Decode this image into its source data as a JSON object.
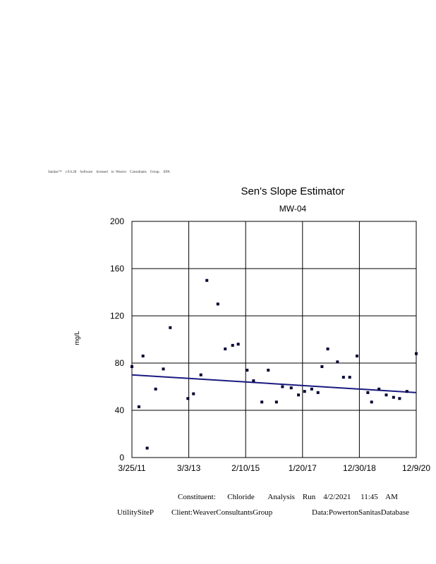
{
  "license_text": "Sanitas™    v.9.6.28    Software    licensed    to  Weaver    Consultants    Group.    EPA",
  "chart_data": {
    "type": "scatter",
    "title": "Sen's Slope Estimator",
    "subtitle": "MW-04",
    "xlabel": "",
    "ylabel": "mg/L",
    "ylim": [
      0,
      200
    ],
    "yticks": [
      0,
      40,
      80,
      120,
      160,
      200
    ],
    "xlim": [
      "2011-03-25",
      "2020-12-09"
    ],
    "xticks": [
      "3/25/11",
      "3/3/13",
      "2/10/15",
      "1/20/17",
      "12/30/18",
      "12/9/20"
    ],
    "grid": true,
    "point_color": "#000033",
    "trend_color": "#1a1a80",
    "trend": {
      "start": [
        "2011-03-25",
        70
      ],
      "end": [
        "2020-12-09",
        55
      ]
    },
    "points": [
      [
        "2011-03-25",
        77
      ],
      [
        "2011-06-20",
        43
      ],
      [
        "2011-08-10",
        86
      ],
      [
        "2011-10-01",
        8
      ],
      [
        "2012-01-15",
        58
      ],
      [
        "2012-04-20",
        75
      ],
      [
        "2012-07-15",
        110
      ],
      [
        "2013-02-20",
        50
      ],
      [
        "2013-05-01",
        54
      ],
      [
        "2013-08-01",
        70
      ],
      [
        "2013-10-15",
        150
      ],
      [
        "2014-03-01",
        130
      ],
      [
        "2014-06-01",
        92
      ],
      [
        "2014-09-01",
        95
      ],
      [
        "2014-11-10",
        96
      ],
      [
        "2015-03-01",
        74
      ],
      [
        "2015-05-20",
        65
      ],
      [
        "2015-09-01",
        47
      ],
      [
        "2015-11-20",
        74
      ],
      [
        "2016-03-01",
        47
      ],
      [
        "2016-05-15",
        60
      ],
      [
        "2016-09-01",
        59
      ],
      [
        "2016-12-01",
        53
      ],
      [
        "2017-02-15",
        56
      ],
      [
        "2017-05-15",
        58
      ],
      [
        "2017-08-01",
        55
      ],
      [
        "2017-09-20",
        77
      ],
      [
        "2017-12-01",
        92
      ],
      [
        "2018-04-01",
        81
      ],
      [
        "2018-06-15",
        68
      ],
      [
        "2018-09-01",
        68
      ],
      [
        "2018-12-01",
        86
      ],
      [
        "2019-04-15",
        55
      ],
      [
        "2019-06-01",
        47
      ],
      [
        "2019-09-01",
        58
      ],
      [
        "2019-12-01",
        53
      ],
      [
        "2020-03-01",
        51
      ],
      [
        "2020-05-15",
        50
      ],
      [
        "2020-08-15",
        56
      ],
      [
        "2020-12-09",
        88
      ]
    ]
  },
  "footer": {
    "constituent": "Constituent:      Chloride       Analysis    Run    4/2/2021     11:45    AM",
    "site": "UtilitySiteP",
    "client": "Client:WeaverConsultantsGroup",
    "data": "Data:PowertonSanitasDatabase"
  }
}
